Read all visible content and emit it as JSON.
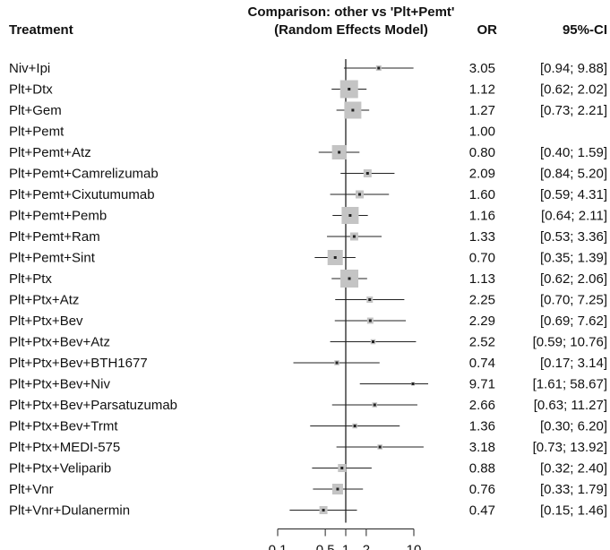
{
  "chart_data": {
    "type": "forest",
    "title": "Comparison: other vs 'Plt+Pemt'",
    "subtitle": "(Random Effects Model)",
    "columns": {
      "treatment": "Treatment",
      "estimate": "OR",
      "ci": "95%-CI"
    },
    "x_scale": "log",
    "xlim": [
      0.1,
      10
    ],
    "x_ticks": [
      0.1,
      0.5,
      1,
      2,
      10
    ],
    "x_tick_labels": [
      "0.1",
      "0.5",
      "1",
      "2",
      "10"
    ],
    "reference_line": 1,
    "series": [
      {
        "label": "Niv+Ipi",
        "or": 3.05,
        "lower": 0.94,
        "upper": 9.88,
        "or_text": "3.05",
        "ci_text": "[0.94; 9.88]",
        "weight": 0.3
      },
      {
        "label": "Plt+Dtx",
        "or": 1.12,
        "lower": 0.62,
        "upper": 2.02,
        "or_text": "1.12",
        "ci_text": "[0.62; 2.02]",
        "weight": 1.0
      },
      {
        "label": "Plt+Gem",
        "or": 1.27,
        "lower": 0.73,
        "upper": 2.21,
        "or_text": "1.27",
        "ci_text": "[0.73; 2.21]",
        "weight": 0.95
      },
      {
        "label": "Plt+Pemt",
        "or": 1.0,
        "lower": null,
        "upper": null,
        "or_text": "1.00",
        "ci_text": "",
        "weight": 0
      },
      {
        "label": "Plt+Pemt+Atz",
        "or": 0.8,
        "lower": 0.4,
        "upper": 1.59,
        "or_text": "0.80",
        "ci_text": "[0.40; 1.59]",
        "weight": 0.8
      },
      {
        "label": "Plt+Pemt+Camrelizumab",
        "or": 2.09,
        "lower": 0.84,
        "upper": 5.2,
        "or_text": "2.09",
        "ci_text": "[0.84; 5.20]",
        "weight": 0.45
      },
      {
        "label": "Plt+Pemt+Cixutumumab",
        "or": 1.6,
        "lower": 0.59,
        "upper": 4.31,
        "or_text": "1.60",
        "ci_text": "[0.59; 4.31]",
        "weight": 0.45
      },
      {
        "label": "Plt+Pemt+Pemb",
        "or": 1.16,
        "lower": 0.64,
        "upper": 2.11,
        "or_text": "1.16",
        "ci_text": "[0.64; 2.11]",
        "weight": 0.95
      },
      {
        "label": "Plt+Pemt+Ram",
        "or": 1.33,
        "lower": 0.53,
        "upper": 3.36,
        "or_text": "1.33",
        "ci_text": "[0.53; 3.36]",
        "weight": 0.45
      },
      {
        "label": "Plt+Pemt+Sint",
        "or": 0.7,
        "lower": 0.35,
        "upper": 1.39,
        "or_text": "0.70",
        "ci_text": "[0.35; 1.39]",
        "weight": 0.85
      },
      {
        "label": "Plt+Ptx",
        "or": 1.13,
        "lower": 0.62,
        "upper": 2.06,
        "or_text": "1.13",
        "ci_text": "[0.62; 2.06]",
        "weight": 1.0
      },
      {
        "label": "Plt+Ptx+Atz",
        "or": 2.25,
        "lower": 0.7,
        "upper": 7.25,
        "or_text": "2.25",
        "ci_text": "[0.70; 7.25]",
        "weight": 0.35
      },
      {
        "label": "Plt+Ptx+Bev",
        "or": 2.29,
        "lower": 0.69,
        "upper": 7.62,
        "or_text": "2.29",
        "ci_text": "[0.69; 7.62]",
        "weight": 0.35
      },
      {
        "label": "Plt+Ptx+Bev+Atz",
        "or": 2.52,
        "lower": 0.59,
        "upper": 10.76,
        "or_text": "2.52",
        "ci_text": "[0.59; 10.76]",
        "weight": 0.28
      },
      {
        "label": "Plt+Ptx+Bev+BTH1677",
        "or": 0.74,
        "lower": 0.17,
        "upper": 3.14,
        "or_text": "0.74",
        "ci_text": "[0.17; 3.14]",
        "weight": 0.28
      },
      {
        "label": "Plt+Ptx+Bev+Niv",
        "or": 9.71,
        "lower": 1.61,
        "upper": 58.67,
        "or_text": "9.71",
        "ci_text": "[1.61; 58.67]",
        "weight": 0.2
      },
      {
        "label": "Plt+Ptx+Bev+Parsatuzumab",
        "or": 2.66,
        "lower": 0.63,
        "upper": 11.27,
        "or_text": "2.66",
        "ci_text": "[0.63; 11.27]",
        "weight": 0.28
      },
      {
        "label": "Plt+Ptx+Bev+Trmt",
        "or": 1.36,
        "lower": 0.3,
        "upper": 6.2,
        "or_text": "1.36",
        "ci_text": "[0.30; 6.20]",
        "weight": 0.28
      },
      {
        "label": "Plt+Ptx+MEDI-575",
        "or": 3.18,
        "lower": 0.73,
        "upper": 13.92,
        "or_text": "3.18",
        "ci_text": "[0.73; 13.92]",
        "weight": 0.28
      },
      {
        "label": "Plt+Ptx+Veliparib",
        "or": 0.88,
        "lower": 0.32,
        "upper": 2.4,
        "or_text": "0.88",
        "ci_text": "[0.32; 2.40]",
        "weight": 0.45
      },
      {
        "label": "Plt+Vnr",
        "or": 0.76,
        "lower": 0.33,
        "upper": 1.79,
        "or_text": "0.76",
        "ci_text": "[0.33; 1.79]",
        "weight": 0.6
      },
      {
        "label": "Plt+Vnr+Dulanermin",
        "or": 0.47,
        "lower": 0.15,
        "upper": 1.46,
        "or_text": "0.47",
        "ci_text": "[0.15; 1.46]",
        "weight": 0.45
      }
    ],
    "colors": {
      "box": "#c4c4c4",
      "line": "#222222",
      "text": "#111111"
    }
  }
}
